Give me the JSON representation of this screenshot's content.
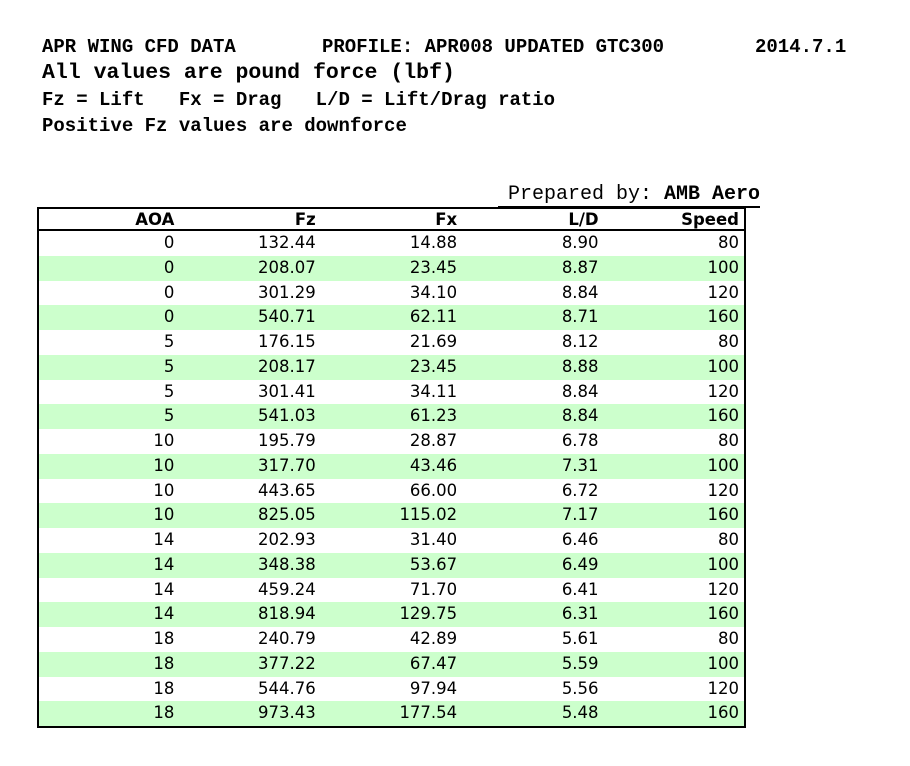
{
  "header": {
    "title": "APR WING CFD DATA",
    "profile": "PROFILE: APR008 UPDATED GTC300",
    "version": "2014.7.1",
    "subtitle": "All values are pound force (lbf)",
    "legend": "Fz = Lift   Fx = Drag   L/D = Lift/Drag ratio",
    "note": "Positive Fz values are downforce"
  },
  "prepared_by": {
    "label": "Prepared by:",
    "value": "AMB Aero"
  },
  "table": {
    "columns": [
      "AOA",
      "Fz",
      "Fx",
      "L/D",
      "Speed"
    ],
    "rows": [
      [
        "0",
        "132.44",
        "14.88",
        "8.90",
        "80"
      ],
      [
        "0",
        "208.07",
        "23.45",
        "8.87",
        "100"
      ],
      [
        "0",
        "301.29",
        "34.10",
        "8.84",
        "120"
      ],
      [
        "0",
        "540.71",
        "62.11",
        "8.71",
        "160"
      ],
      [
        "5",
        "176.15",
        "21.69",
        "8.12",
        "80"
      ],
      [
        "5",
        "208.17",
        "23.45",
        "8.88",
        "100"
      ],
      [
        "5",
        "301.41",
        "34.11",
        "8.84",
        "120"
      ],
      [
        "5",
        "541.03",
        "61.23",
        "8.84",
        "160"
      ],
      [
        "10",
        "195.79",
        "28.87",
        "6.78",
        "80"
      ],
      [
        "10",
        "317.70",
        "43.46",
        "7.31",
        "100"
      ],
      [
        "10",
        "443.65",
        "66.00",
        "6.72",
        "120"
      ],
      [
        "10",
        "825.05",
        "115.02",
        "7.17",
        "160"
      ],
      [
        "14",
        "202.93",
        "31.40",
        "6.46",
        "80"
      ],
      [
        "14",
        "348.38",
        "53.67",
        "6.49",
        "100"
      ],
      [
        "14",
        "459.24",
        "71.70",
        "6.41",
        "120"
      ],
      [
        "14",
        "818.94",
        "129.75",
        "6.31",
        "160"
      ],
      [
        "18",
        "240.79",
        "42.89",
        "5.61",
        "80"
      ],
      [
        "18",
        "377.22",
        "67.47",
        "5.59",
        "100"
      ],
      [
        "18",
        "544.76",
        "97.94",
        "5.56",
        "120"
      ],
      [
        "18",
        "973.43",
        "177.54",
        "5.48",
        "160"
      ]
    ]
  },
  "colors": {
    "row_alt_green": "#ccffcc",
    "table_border": "#000000",
    "text": "#000000",
    "background": "#ffffff"
  }
}
